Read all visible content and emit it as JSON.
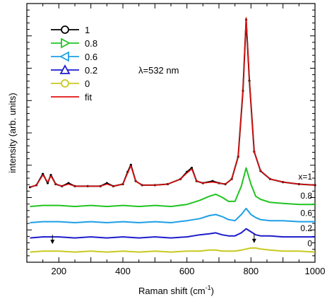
{
  "chart_data": {
    "type": "line",
    "title": "",
    "xlabel": "Raman shift (cm",
    "xlabel_sup": "-1",
    "xlabel_suffix": ")",
    "ylabel": "intensity (arb. units)",
    "annotation": "λ=532 nm",
    "xlim": [
      100,
      1000
    ],
    "x_ticks": [
      200,
      400,
      600,
      800,
      1000
    ],
    "x_tick_labels": [
      "200",
      "400",
      "600",
      "800",
      "1000"
    ],
    "ylim": [
      -0.1,
      2.45
    ],
    "grid": false,
    "legend_position": "top-left",
    "legend": [
      {
        "label": "1",
        "marker": "circle",
        "color": "#000000"
      },
      {
        "label": "0.8",
        "marker": "triangle-right",
        "color": "#22c422"
      },
      {
        "label": "0.6",
        "marker": "triangle-left",
        "color": "#1e9fe6"
      },
      {
        "label": "0.2",
        "marker": "triangle-up",
        "color": "#1c1ccc"
      },
      {
        "label": "0",
        "marker": "circle",
        "color": "#c9c920"
      },
      {
        "label": "fit",
        "marker": "line",
        "color": "#e01010"
      }
    ],
    "series": [
      {
        "name": "1",
        "curve_label": "x=1",
        "color": "#000000",
        "offset": 0.64,
        "x": [
          110,
          130,
          150,
          165,
          175,
          190,
          210,
          230,
          250,
          290,
          330,
          350,
          370,
          400,
          415,
          425,
          440,
          460,
          500,
          540,
          580,
          600,
          615,
          630,
          650,
          680,
          700,
          720,
          740,
          760,
          775,
          785,
          795,
          810,
          830,
          860,
          900,
          950,
          1000
        ],
        "y": [
          0.0,
          0.02,
          0.13,
          0.04,
          0.12,
          0.03,
          0.01,
          0.04,
          0.01,
          0.01,
          0.01,
          0.04,
          0.01,
          0.03,
          0.15,
          0.22,
          0.06,
          0.02,
          0.02,
          0.03,
          0.08,
          0.15,
          0.19,
          0.06,
          0.04,
          0.06,
          0.04,
          0.03,
          0.08,
          0.3,
          0.95,
          1.65,
          1.05,
          0.35,
          0.16,
          0.08,
          0.05,
          0.03,
          0.02
        ]
      },
      {
        "name": "fit",
        "color": "#e01010",
        "offset": 0.64,
        "x": [
          110,
          130,
          150,
          165,
          175,
          190,
          210,
          230,
          250,
          290,
          330,
          350,
          370,
          400,
          415,
          425,
          440,
          460,
          500,
          540,
          580,
          600,
          615,
          630,
          650,
          680,
          700,
          720,
          740,
          760,
          775,
          785,
          795,
          810,
          830,
          860,
          900,
          950,
          1000
        ],
        "y": [
          0.0,
          0.02,
          0.12,
          0.05,
          0.11,
          0.03,
          0.01,
          0.03,
          0.01,
          0.01,
          0.01,
          0.03,
          0.01,
          0.03,
          0.14,
          0.21,
          0.06,
          0.02,
          0.02,
          0.03,
          0.08,
          0.14,
          0.18,
          0.06,
          0.04,
          0.05,
          0.04,
          0.03,
          0.08,
          0.3,
          0.95,
          1.67,
          1.05,
          0.35,
          0.16,
          0.08,
          0.05,
          0.03,
          0.02
        ]
      },
      {
        "name": "0.8",
        "curve_label": "0.8",
        "color": "#22c422",
        "offset": 0.45,
        "x": [
          110,
          150,
          200,
          250,
          300,
          350,
          400,
          450,
          500,
          550,
          600,
          640,
          670,
          690,
          710,
          730,
          750,
          770,
          785,
          800,
          815,
          830,
          860,
          900,
          950,
          1000
        ],
        "y": [
          0.0,
          0.01,
          0.01,
          0.0,
          0.01,
          0.0,
          0.01,
          0.0,
          0.01,
          0.0,
          0.02,
          0.06,
          0.1,
          0.12,
          0.09,
          0.05,
          0.05,
          0.2,
          0.38,
          0.22,
          0.1,
          0.07,
          0.04,
          0.03,
          0.02,
          0.02
        ]
      },
      {
        "name": "0.6",
        "curve_label": "0.6",
        "color": "#1e9fe6",
        "offset": 0.29,
        "x": [
          110,
          150,
          200,
          250,
          300,
          350,
          400,
          450,
          500,
          550,
          600,
          640,
          670,
          690,
          710,
          730,
          750,
          770,
          785,
          800,
          815,
          830,
          860,
          900,
          950,
          1000
        ],
        "y": [
          0.0,
          0.01,
          0.01,
          0.0,
          0.01,
          0.0,
          0.01,
          0.0,
          0.01,
          0.0,
          0.02,
          0.04,
          0.07,
          0.08,
          0.06,
          0.03,
          0.02,
          0.08,
          0.14,
          0.08,
          0.05,
          0.03,
          0.02,
          0.02,
          0.01,
          0.01
        ]
      },
      {
        "name": "0.2",
        "curve_label": "0.2",
        "color": "#1c1ccc",
        "offset": 0.14,
        "x": [
          110,
          150,
          200,
          250,
          300,
          350,
          400,
          450,
          500,
          550,
          600,
          640,
          670,
          690,
          710,
          730,
          750,
          770,
          785,
          800,
          815,
          830,
          860,
          900,
          950,
          1000
        ],
        "y": [
          0.0,
          0.01,
          0.01,
          0.0,
          0.01,
          0.0,
          0.01,
          0.0,
          0.01,
          0.0,
          0.01,
          0.03,
          0.04,
          0.05,
          0.03,
          0.02,
          0.02,
          0.05,
          0.09,
          0.06,
          0.03,
          0.02,
          0.02,
          0.01,
          0.01,
          0.01
        ]
      },
      {
        "name": "0",
        "curve_label": "0",
        "color": "#c9c920",
        "offset": 0.0,
        "x": [
          110,
          150,
          200,
          250,
          300,
          350,
          400,
          450,
          500,
          550,
          600,
          640,
          670,
          690,
          710,
          730,
          750,
          770,
          785,
          800,
          815,
          830,
          860,
          900,
          950,
          1000
        ],
        "y": [
          0.0,
          0.01,
          0.01,
          0.0,
          0.01,
          0.0,
          0.01,
          0.0,
          0.01,
          0.0,
          0.01,
          0.01,
          0.02,
          0.02,
          0.01,
          0.01,
          0.01,
          0.02,
          0.03,
          0.04,
          0.04,
          0.03,
          0.02,
          0.01,
          0.01,
          0.0
        ]
      }
    ],
    "arrows": [
      {
        "x": 180,
        "y": 0.1
      },
      {
        "x": 810,
        "y": 0.11
      }
    ]
  }
}
